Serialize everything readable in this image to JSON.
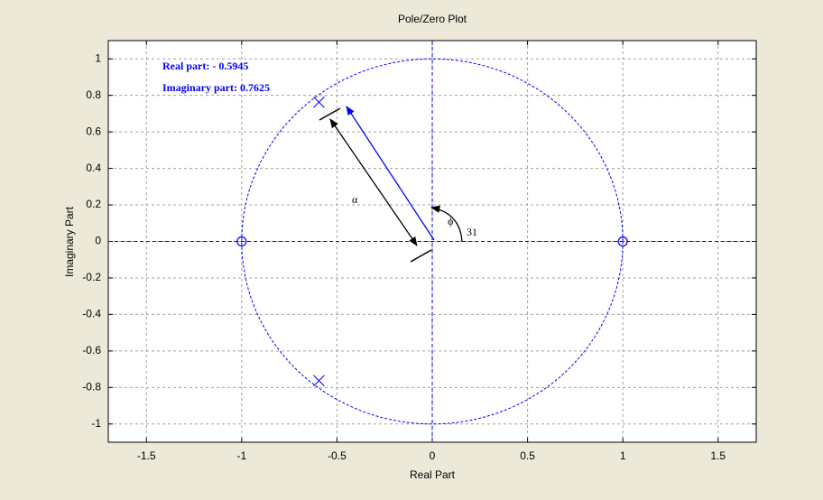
{
  "chart_data": {
    "type": "scatter",
    "title": "Pole/Zero Plot",
    "xlabel": "Real Part",
    "ylabel": "Imaginary Part",
    "xlim": [
      -1.7,
      1.7
    ],
    "ylim": [
      -1.1,
      1.1
    ],
    "xticks": [
      -1.5,
      -1,
      -0.5,
      0,
      0.5,
      1,
      1.5
    ],
    "yticks": [
      -1,
      -0.8,
      -0.6,
      -0.4,
      -0.2,
      0,
      0.2,
      0.4,
      0.6,
      0.8,
      1
    ],
    "grid": true,
    "unit_circle": true,
    "color": "#0000ff",
    "poles": {
      "x": [
        -0.5945,
        -0.5945
      ],
      "y": [
        0.7625,
        -0.7625
      ]
    },
    "zeros": {
      "x": [
        -1,
        1
      ],
      "y": [
        0,
        0
      ]
    },
    "annotations": [
      "Real part: - 0.5945",
      "Imaginary part: 0.7625",
      "α",
      "ϕ",
      "31"
    ]
  }
}
